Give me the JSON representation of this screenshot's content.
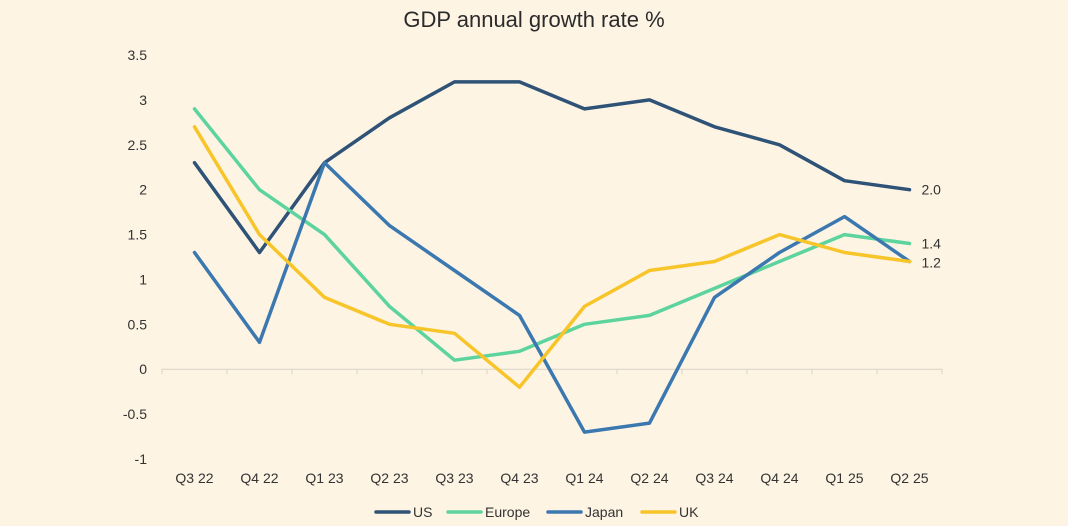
{
  "chart_data": {
    "type": "line",
    "title": "GDP annual growth rate %",
    "xlabel": "",
    "ylabel": "",
    "categories": [
      "Q3 22",
      "Q4 22",
      "Q1 23",
      "Q2 23",
      "Q3 23",
      "Q4 23",
      "Q1 24",
      "Q2 24",
      "Q3 24",
      "Q4 24",
      "Q1 25",
      "Q2 25"
    ],
    "ylim": [
      -1,
      3.5
    ],
    "yticks": [
      "3.5",
      "3",
      "2.5",
      "2",
      "1.5",
      "1",
      "0.5",
      "0",
      "-0.5",
      "-1"
    ],
    "grid": false,
    "legend_position": "bottom",
    "series": [
      {
        "name": "US",
        "color": "#2f5377",
        "values": [
          2.3,
          1.3,
          2.3,
          2.8,
          3.2,
          3.2,
          2.9,
          3.0,
          2.7,
          2.5,
          2.1,
          2.0
        ]
      },
      {
        "name": "Europe",
        "color": "#5dd39e",
        "values": [
          2.9,
          2.0,
          1.5,
          0.7,
          0.1,
          0.2,
          0.5,
          0.6,
          0.9,
          1.2,
          1.5,
          1.4
        ]
      },
      {
        "name": "Japan",
        "color": "#3b78b0",
        "values": [
          1.3,
          0.3,
          2.3,
          1.6,
          1.1,
          0.6,
          -0.7,
          -0.6,
          0.8,
          1.3,
          1.7,
          1.2
        ]
      },
      {
        "name": "UK",
        "color": "#f7c52a",
        "values": [
          2.7,
          1.5,
          0.8,
          0.5,
          0.4,
          -0.2,
          0.7,
          1.1,
          1.2,
          1.5,
          1.3,
          1.2
        ]
      }
    ],
    "end_labels": [
      "2.0",
      "1.4",
      "1.2"
    ]
  }
}
